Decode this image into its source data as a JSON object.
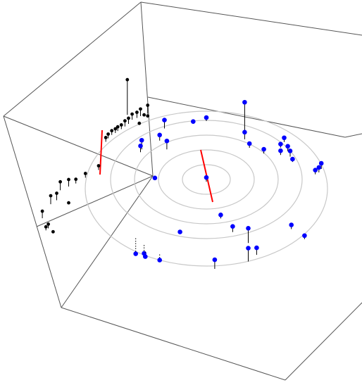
{
  "chart_data": {
    "type": "scatter3d",
    "series": [
      {
        "color": "#0000ff",
        "x": [
          0.32,
          0.32,
          0.36,
          0.48,
          0.65,
          0.62,
          0.68,
          0.62,
          0.7,
          0.72,
          0.96,
          0.94,
          0.91,
          0.0,
          -0.11,
          -0.35,
          -0.39,
          -0.33,
          -0.54,
          -0.55,
          -0.43,
          0.0,
          0.12,
          -0.22,
          0.22,
          0.35,
          0.71,
          0.82,
          0.35,
          0.42,
          0.07,
          -0.59,
          -0.52,
          -0.51,
          -0.39
        ],
        "y": [
          0.71,
          0.59,
          0.48,
          0.42,
          0.6,
          0.52,
          0.48,
          0.42,
          0.41,
          0.34,
          0.28,
          0.23,
          0.2,
          0.79,
          0.74,
          0.64,
          0.47,
          0.36,
          0.33,
          0.29,
          -0.06,
          -0.03,
          -0.51,
          -0.76,
          -0.68,
          -0.81,
          -0.57,
          -0.69,
          -1.06,
          -0.96,
          -1.2,
          -0.88,
          -0.96,
          -1.05,
          -1.07
        ],
        "z": [
          0.4,
          0.1,
          0.06,
          0.06,
          0.06,
          0.05,
          0.07,
          0.06,
          0.08,
          0.04,
          0.08,
          0.07,
          0.06,
          0.05,
          0.03,
          0.12,
          0.08,
          0.12,
          0.13,
          0.09,
          0.02,
          0.06,
          0.05,
          0.02,
          0.08,
          0.21,
          0.06,
          0.05,
          0.19,
          0.1,
          0.13,
          -0.22,
          -0.12,
          -0.07,
          -0.08
        ]
      },
      {
        "color": "#000000",
        "x": [
          -0.66,
          -0.49,
          -0.55,
          -0.58,
          -0.62,
          -0.65,
          -0.68,
          -0.71,
          -0.74,
          -0.76,
          -0.79,
          -0.82,
          -0.84,
          -0.9,
          -1.01,
          -1.09,
          -1.15,
          -1.22,
          -1.25,
          -1.3,
          -1.37,
          -1.34,
          -1.32,
          -1.28,
          -1.15,
          -0.52,
          -0.56,
          -0.49
        ],
        "y": [
          0.78,
          0.82,
          0.78,
          0.75,
          0.72,
          0.66,
          0.62,
          0.58,
          0.55,
          0.52,
          0.49,
          0.44,
          0.39,
          0.0,
          -0.12,
          -0.21,
          -0.26,
          -0.32,
          -0.46,
          -0.52,
          -0.72,
          -0.88,
          -0.85,
          -0.89,
          -0.48,
          0.8,
          0.68,
          0.79
        ],
        "z": [
          0.5,
          0.12,
          0.1,
          0.08,
          0.08,
          0.08,
          0.08,
          0.06,
          0.06,
          0.06,
          0.06,
          0.06,
          0.06,
          0.06,
          0.06,
          0.06,
          0.1,
          0.12,
          0.1,
          0.12,
          0.1,
          0.05,
          0.06,
          0.0,
          0.0,
          0.0,
          0.0,
          0.0
        ]
      }
    ]
  }
}
